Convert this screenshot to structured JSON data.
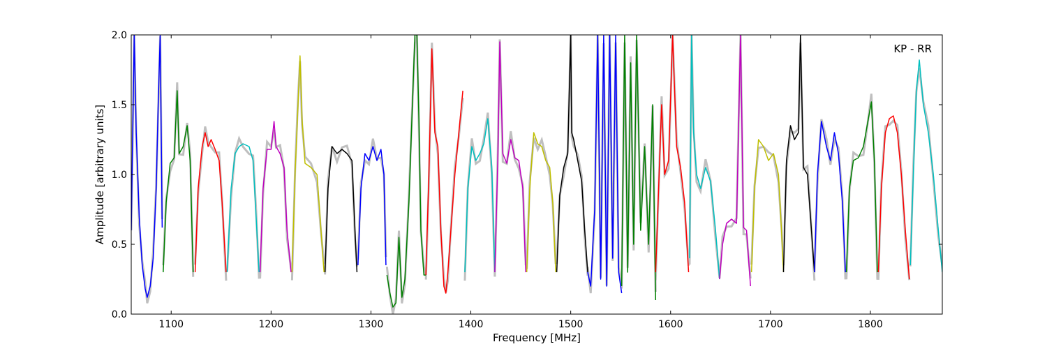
{
  "chart_data": {
    "type": "line",
    "xlabel": "Frequency [MHz]",
    "ylabel": "Amplitude [arbitrary units]",
    "annotation": "KP - RR",
    "xlim": [
      1060,
      1872
    ],
    "ylim": [
      0.0,
      2.0
    ],
    "x_ticks": [
      1100,
      1200,
      1300,
      1400,
      1500,
      1600,
      1700,
      1800
    ],
    "x_tick_labels": [
      "1100",
      "1200",
      "1300",
      "1400",
      "1500",
      "1600",
      "1700",
      "1800"
    ],
    "y_ticks": [
      0.0,
      0.5,
      1.0,
      1.5,
      2.0
    ],
    "y_tick_labels": [
      "0.0",
      "0.5",
      "1.0",
      "1.5",
      "2.0"
    ],
    "grid": false,
    "background_color": "#bfbfbf",
    "series": [
      {
        "color": "#0000ff",
        "x": [
          1060,
          1063,
          1065,
          1068,
          1071,
          1074,
          1076,
          1079,
          1082,
          1085,
          1087,
          1089,
          1091
        ],
        "y": [
          0.6,
          2.0,
          1.3,
          0.7,
          0.35,
          0.18,
          0.12,
          0.2,
          0.4,
          0.9,
          1.5,
          2.0,
          0.62
        ]
      },
      {
        "color": "#008000",
        "x": [
          1092,
          1095,
          1099,
          1103,
          1106,
          1108,
          1112,
          1116,
          1119,
          1122
        ],
        "y": [
          0.3,
          0.8,
          1.08,
          1.12,
          1.6,
          1.15,
          1.2,
          1.35,
          1.1,
          0.3
        ]
      },
      {
        "color": "#ff0000",
        "x": [
          1124,
          1127,
          1131,
          1134,
          1137,
          1140,
          1144,
          1148,
          1151,
          1155
        ],
        "y": [
          0.3,
          0.9,
          1.2,
          1.3,
          1.2,
          1.25,
          1.18,
          1.1,
          0.8,
          0.3
        ]
      },
      {
        "color": "#00bfbf",
        "x": [
          1156,
          1160,
          1164,
          1168,
          1172,
          1178,
          1182,
          1185,
          1188
        ],
        "y": [
          0.3,
          0.9,
          1.15,
          1.2,
          1.22,
          1.2,
          1.1,
          0.7,
          0.3
        ]
      },
      {
        "color": "#bf00bf",
        "x": [
          1189,
          1192,
          1196,
          1200,
          1203,
          1205,
          1209,
          1213,
          1216,
          1220
        ],
        "y": [
          0.3,
          0.9,
          1.18,
          1.18,
          1.38,
          1.2,
          1.15,
          1.05,
          0.6,
          0.3
        ]
      },
      {
        "color": "#bfbf00",
        "x": [
          1221,
          1224,
          1227,
          1229,
          1231,
          1234,
          1240,
          1246,
          1250,
          1253
        ],
        "y": [
          0.3,
          1.0,
          1.5,
          1.85,
          1.4,
          1.08,
          1.05,
          1.0,
          0.6,
          0.3
        ]
      },
      {
        "color": "#000000",
        "x": [
          1254,
          1257,
          1261,
          1266,
          1271,
          1276,
          1281,
          1284,
          1286
        ],
        "y": [
          0.3,
          0.9,
          1.2,
          1.15,
          1.18,
          1.15,
          1.1,
          0.6,
          0.3
        ]
      },
      {
        "color": "#0000ff",
        "x": [
          1287,
          1290,
          1294,
          1298,
          1302,
          1306,
          1310,
          1313,
          1315
        ],
        "y": [
          0.35,
          0.9,
          1.15,
          1.1,
          1.2,
          1.1,
          1.18,
          1.0,
          0.35
        ]
      },
      {
        "color": "#008000",
        "x": [
          1316,
          1319,
          1322,
          1325,
          1328,
          1331,
          1334,
          1338,
          1341,
          1344,
          1346
        ],
        "y": [
          0.28,
          0.15,
          0.05,
          0.08,
          0.55,
          0.12,
          0.25,
          0.8,
          1.4,
          2.0,
          2.0
        ]
      },
      {
        "color": "#008000",
        "x": [
          1346,
          1348,
          1350,
          1353,
          1355
        ],
        "y": [
          2.0,
          1.4,
          0.6,
          0.28,
          0.28
        ]
      },
      {
        "color": "#ff0000",
        "x": [
          1355,
          1358,
          1361,
          1364,
          1367,
          1370,
          1373,
          1375,
          1377,
          1380,
          1384,
          1388,
          1392
        ],
        "y": [
          0.28,
          1.0,
          1.9,
          1.3,
          1.2,
          0.6,
          0.2,
          0.15,
          0.3,
          0.6,
          1.0,
          1.3,
          1.6
        ]
      },
      {
        "color": "#00bfbf",
        "x": [
          1394,
          1397,
          1401,
          1405,
          1409,
          1413,
          1417,
          1421,
          1424
        ],
        "y": [
          0.3,
          0.9,
          1.2,
          1.1,
          1.15,
          1.22,
          1.4,
          1.05,
          0.3
        ]
      },
      {
        "color": "#bf00bf",
        "x": [
          1424,
          1427,
          1429,
          1432,
          1436,
          1440,
          1444,
          1448,
          1452,
          1455
        ],
        "y": [
          0.3,
          1.1,
          1.95,
          1.15,
          1.08,
          1.25,
          1.12,
          1.1,
          0.9,
          0.3
        ]
      },
      {
        "color": "#bfbf00",
        "x": [
          1456,
          1459,
          1463,
          1467,
          1471,
          1475,
          1479,
          1482,
          1485
        ],
        "y": [
          0.3,
          0.9,
          1.3,
          1.22,
          1.2,
          1.1,
          1.05,
          0.8,
          0.3
        ]
      },
      {
        "color": "#000000",
        "x": [
          1486,
          1489,
          1493,
          1497,
          1500,
          1501,
          1503,
          1507,
          1511,
          1514,
          1517
        ],
        "y": [
          0.3,
          0.85,
          1.05,
          1.15,
          2.0,
          1.3,
          1.25,
          1.1,
          0.95,
          0.6,
          0.3
        ]
      },
      {
        "color": "#0000ff",
        "x": [
          1517,
          1520,
          1524,
          1527,
          1530,
          1533,
          1536,
          1539,
          1542,
          1545,
          1548,
          1551
        ],
        "y": [
          0.3,
          0.2,
          0.75,
          2.0,
          0.25,
          2.0,
          0.2,
          2.0,
          0.4,
          2.0,
          0.3,
          0.15
        ]
      },
      {
        "color": "#008000",
        "x": [
          1551,
          1554,
          1557,
          1560,
          1563,
          1566,
          1570,
          1574,
          1578,
          1582,
          1585
        ],
        "y": [
          0.2,
          2.0,
          0.3,
          1.8,
          0.5,
          2.0,
          0.6,
          1.2,
          0.5,
          1.5,
          0.1
        ]
      },
      {
        "color": "#ff0000",
        "x": [
          1585,
          1588,
          1591,
          1594,
          1598,
          1602,
          1606,
          1610,
          1614,
          1618
        ],
        "y": [
          0.3,
          0.9,
          1.5,
          1.0,
          1.1,
          2.0,
          1.2,
          1.05,
          0.8,
          0.3
        ]
      },
      {
        "color": "#00bfbf",
        "x": [
          1619,
          1621,
          1623,
          1626,
          1630,
          1635,
          1640,
          1645,
          1649
        ],
        "y": [
          0.4,
          2.0,
          1.3,
          1.0,
          0.9,
          1.05,
          0.95,
          0.6,
          0.25
        ]
      },
      {
        "color": "#bf00bf",
        "x": [
          1649,
          1652,
          1656,
          1661,
          1666,
          1670,
          1673,
          1676,
          1680
        ],
        "y": [
          0.25,
          0.5,
          0.65,
          0.68,
          0.65,
          2.0,
          0.62,
          0.6,
          0.2
        ]
      },
      {
        "color": "#bfbf00",
        "x": [
          1681,
          1684,
          1688,
          1693,
          1698,
          1703,
          1708,
          1711,
          1713
        ],
        "y": [
          0.3,
          0.9,
          1.25,
          1.2,
          1.1,
          1.15,
          1.0,
          0.6,
          0.3
        ]
      },
      {
        "color": "#000000",
        "x": [
          1713,
          1716,
          1720,
          1724,
          1728,
          1730,
          1733,
          1737,
          1741,
          1744
        ],
        "y": [
          0.3,
          1.1,
          1.35,
          1.25,
          1.3,
          2.0,
          1.05,
          1.0,
          0.6,
          0.3
        ]
      },
      {
        "color": "#0000ff",
        "x": [
          1744,
          1747,
          1751,
          1756,
          1760,
          1764,
          1768,
          1772,
          1775
        ],
        "y": [
          0.3,
          1.0,
          1.38,
          1.2,
          1.1,
          1.3,
          1.15,
          0.8,
          0.3
        ]
      },
      {
        "color": "#008000",
        "x": [
          1776,
          1779,
          1783,
          1788,
          1793,
          1798,
          1801,
          1804,
          1807
        ],
        "y": [
          0.3,
          0.9,
          1.1,
          1.12,
          1.2,
          1.4,
          1.52,
          1.1,
          0.3
        ]
      },
      {
        "color": "#ff0000",
        "x": [
          1808,
          1811,
          1815,
          1819,
          1823,
          1827,
          1831,
          1835,
          1839
        ],
        "y": [
          0.3,
          0.9,
          1.3,
          1.4,
          1.42,
          1.3,
          1.0,
          0.6,
          0.25
        ]
      },
      {
        "color": "#00bfbf",
        "x": [
          1840,
          1843,
          1846,
          1849,
          1853,
          1858,
          1863,
          1868,
          1872
        ],
        "y": [
          0.35,
          1.0,
          1.6,
          1.82,
          1.5,
          1.3,
          1.0,
          0.6,
          0.3
        ]
      }
    ]
  }
}
